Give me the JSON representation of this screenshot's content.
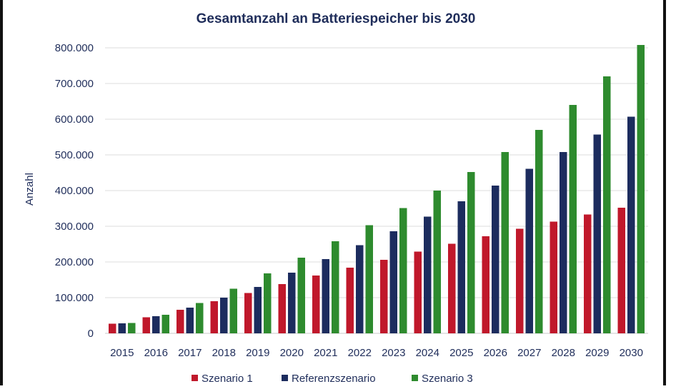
{
  "chart_data": {
    "type": "bar",
    "title": "Gesamtanzahl an Batteriespeicher bis 2030",
    "xlabel": "",
    "ylabel": "Anzahl",
    "ylim": [
      0,
      800000
    ],
    "yticks": [
      0,
      100000,
      200000,
      300000,
      400000,
      500000,
      600000,
      700000,
      800000
    ],
    "ytick_labels": [
      "0",
      "100.000",
      "200.000",
      "300.000",
      "400.000",
      "500.000",
      "600.000",
      "700.000",
      "800.000"
    ],
    "categories": [
      "2015",
      "2016",
      "2017",
      "2018",
      "2019",
      "2020",
      "2021",
      "2022",
      "2023",
      "2024",
      "2025",
      "2026",
      "2027",
      "2028",
      "2029",
      "2030"
    ],
    "series": [
      {
        "name": "Szenario 1",
        "color": "#c0182b",
        "values": [
          27000,
          45000,
          66000,
          90000,
          113000,
          138000,
          162000,
          184000,
          206000,
          229000,
          251000,
          272000,
          293000,
          313000,
          333000,
          352000
        ]
      },
      {
        "name": "Referenzszenario",
        "color": "#1c2c5e",
        "values": [
          28000,
          48000,
          72000,
          100000,
          130000,
          170000,
          208000,
          247000,
          286000,
          327000,
          370000,
          414000,
          461000,
          508000,
          557000,
          607000
        ]
      },
      {
        "name": "Szenario 3",
        "color": "#2e8b2e",
        "values": [
          29000,
          52000,
          85000,
          125000,
          168000,
          212000,
          258000,
          303000,
          351000,
          400000,
          452000,
          508000,
          570000,
          640000,
          720000,
          808000
        ]
      }
    ],
    "grid": true,
    "legend_position": "bottom"
  }
}
